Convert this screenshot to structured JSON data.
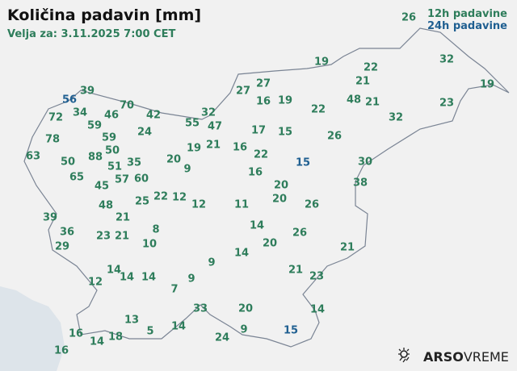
{
  "header": {
    "title": "Količina padavin [mm]",
    "valid": "Velja za: 3.11.2025 7:00 CET"
  },
  "legend": {
    "label_12h": "12h padavine",
    "label_24h": "24h padavine",
    "color_12h": "#2e7d5b",
    "color_24h": "#1f5f91"
  },
  "stations": [
    {
      "v": "26",
      "t": "12h"
    },
    {
      "v": "19",
      "t": "12h"
    },
    {
      "v": "22",
      "t": "12h"
    },
    {
      "v": "32",
      "t": "12h"
    },
    {
      "v": "21",
      "t": "12h"
    },
    {
      "v": "19",
      "t": "12h"
    },
    {
      "v": "27",
      "t": "12h"
    },
    {
      "v": "27",
      "t": "12h"
    },
    {
      "v": "16",
      "t": "12h"
    },
    {
      "v": "19",
      "t": "12h"
    },
    {
      "v": "48",
      "t": "12h"
    },
    {
      "v": "21",
      "t": "12h"
    },
    {
      "v": "22",
      "t": "12h"
    },
    {
      "v": "23",
      "t": "12h"
    },
    {
      "v": "32",
      "t": "12h"
    },
    {
      "v": "39",
      "t": "12h"
    },
    {
      "v": "56",
      "t": "24h"
    },
    {
      "v": "70",
      "t": "12h"
    },
    {
      "v": "42",
      "t": "12h"
    },
    {
      "v": "72",
      "t": "12h"
    },
    {
      "v": "34",
      "t": "12h"
    },
    {
      "v": "46",
      "t": "12h"
    },
    {
      "v": "32",
      "t": "12h"
    },
    {
      "v": "55",
      "t": "12h"
    },
    {
      "v": "47",
      "t": "12h"
    },
    {
      "v": "59",
      "t": "12h"
    },
    {
      "v": "59",
      "t": "12h"
    },
    {
      "v": "24",
      "t": "12h"
    },
    {
      "v": "17",
      "t": "12h"
    },
    {
      "v": "15",
      "t": "12h"
    },
    {
      "v": "26",
      "t": "12h"
    },
    {
      "v": "78",
      "t": "12h"
    },
    {
      "v": "19",
      "t": "12h"
    },
    {
      "v": "21",
      "t": "12h"
    },
    {
      "v": "16",
      "t": "12h"
    },
    {
      "v": "22",
      "t": "12h"
    },
    {
      "v": "50",
      "t": "12h"
    },
    {
      "v": "63",
      "t": "12h"
    },
    {
      "v": "88",
      "t": "12h"
    },
    {
      "v": "50",
      "t": "12h"
    },
    {
      "v": "20",
      "t": "12h"
    },
    {
      "v": "51",
      "t": "12h"
    },
    {
      "v": "35",
      "t": "12h"
    },
    {
      "v": "9",
      "t": "12h"
    },
    {
      "v": "15",
      "t": "24h"
    },
    {
      "v": "30",
      "t": "12h"
    },
    {
      "v": "57",
      "t": "12h"
    },
    {
      "v": "16",
      "t": "12h"
    },
    {
      "v": "65",
      "t": "12h"
    },
    {
      "v": "60",
      "t": "12h"
    },
    {
      "v": "38",
      "t": "12h"
    },
    {
      "v": "20",
      "t": "12h"
    },
    {
      "v": "45",
      "t": "12h"
    },
    {
      "v": "25",
      "t": "12h"
    },
    {
      "v": "22",
      "t": "12h"
    },
    {
      "v": "12",
      "t": "12h"
    },
    {
      "v": "20",
      "t": "12h"
    },
    {
      "v": "48",
      "t": "12h"
    },
    {
      "v": "12",
      "t": "12h"
    },
    {
      "v": "11",
      "t": "12h"
    },
    {
      "v": "26",
      "t": "12h"
    },
    {
      "v": "21",
      "t": "12h"
    },
    {
      "v": "39",
      "t": "12h"
    },
    {
      "v": "14",
      "t": "12h"
    },
    {
      "v": "8",
      "t": "12h"
    },
    {
      "v": "36",
      "t": "12h"
    },
    {
      "v": "26",
      "t": "12h"
    },
    {
      "v": "23",
      "t": "12h"
    },
    {
      "v": "21",
      "t": "12h"
    },
    {
      "v": "20",
      "t": "12h"
    },
    {
      "v": "10",
      "t": "12h"
    },
    {
      "v": "29",
      "t": "12h"
    },
    {
      "v": "21",
      "t": "12h"
    },
    {
      "v": "14",
      "t": "12h"
    },
    {
      "v": "9",
      "t": "12h"
    },
    {
      "v": "14",
      "t": "12h"
    },
    {
      "v": "21",
      "t": "12h"
    },
    {
      "v": "14",
      "t": "12h"
    },
    {
      "v": "14",
      "t": "12h"
    },
    {
      "v": "23",
      "t": "12h"
    },
    {
      "v": "12",
      "t": "12h"
    },
    {
      "v": "9",
      "t": "12h"
    },
    {
      "v": "7",
      "t": "12h"
    },
    {
      "v": "33",
      "t": "12h"
    },
    {
      "v": "20",
      "t": "12h"
    },
    {
      "v": "14",
      "t": "12h"
    },
    {
      "v": "13",
      "t": "12h"
    },
    {
      "v": "16",
      "t": "12h"
    },
    {
      "v": "14",
      "t": "12h"
    },
    {
      "v": "5",
      "t": "12h"
    },
    {
      "v": "9",
      "t": "12h"
    },
    {
      "v": "15",
      "t": "24h"
    },
    {
      "v": "18",
      "t": "12h"
    },
    {
      "v": "14",
      "t": "12h"
    },
    {
      "v": "24",
      "t": "12h"
    },
    {
      "v": "16",
      "t": "12h"
    }
  ],
  "logo": {
    "text_bold": "ARSO",
    "text_light": "VREME",
    "icon": "sun-rain-icon"
  }
}
